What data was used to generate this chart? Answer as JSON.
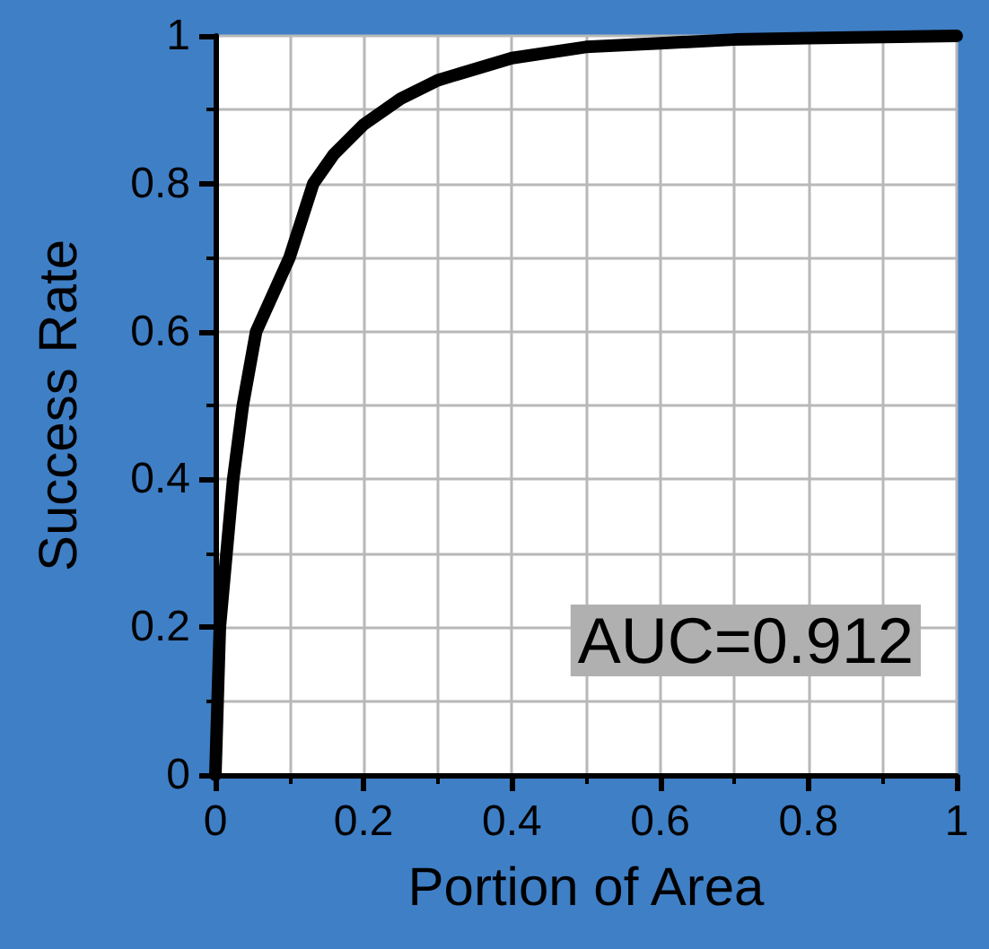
{
  "chart_data": {
    "type": "line",
    "xlabel": "Portion of Area",
    "ylabel": "Success Rate",
    "x": [
      0,
      0.003,
      0.006,
      0.015,
      0.024,
      0.037,
      0.055,
      0.1,
      0.132,
      0.16,
      0.2,
      0.25,
      0.3,
      0.4,
      0.5,
      0.6,
      0.7,
      0.8,
      1
    ],
    "series": [
      {
        "color": "#000000",
        "values": [
          0,
          0.1,
          0.2,
          0.3,
          0.4,
          0.5,
          0.6,
          0.7,
          0.8,
          0.84,
          0.88,
          0.915,
          0.94,
          0.97,
          0.985,
          0.99,
          0.995,
          0.997,
          1
        ]
      }
    ],
    "xlim": [
      0,
      1
    ],
    "ylim": [
      0,
      1
    ],
    "xticks": [
      0,
      0.2,
      0.4,
      0.6,
      0.8,
      1
    ],
    "yticks": [
      0,
      0.2,
      0.4,
      0.6,
      0.8,
      1
    ],
    "grid": true,
    "line_style": "solid",
    "annotations": [
      "AUC=0.912"
    ]
  }
}
